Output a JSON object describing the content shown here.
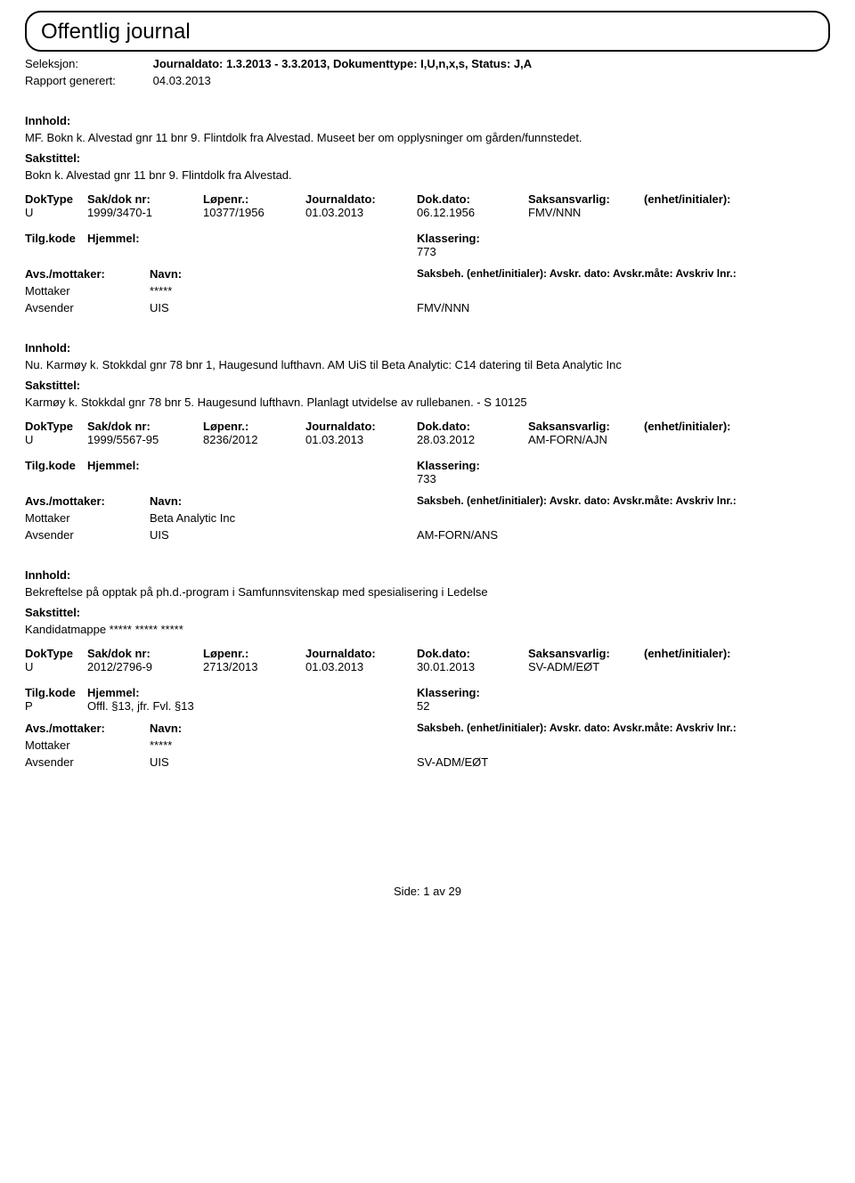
{
  "title": "Offentlig journal",
  "meta": {
    "seleksjon_label": "Seleksjon:",
    "seleksjon_value": "Journaldato: 1.3.2013 - 3.3.2013, Dokumenttype: I,U,n,x,s, Status: J,A",
    "rapport_label": "Rapport generert:",
    "rapport_value": "04.03.2013"
  },
  "labels": {
    "innhold": "Innhold:",
    "sakstittel": "Sakstittel:",
    "doktype": "DokType",
    "sakdok": "Sak/dok nr:",
    "lopenr": "Løpenr.:",
    "journaldato": "Journaldato:",
    "dokdato": "Dok.dato:",
    "saksansvarlig": "Saksansvarlig:",
    "enhet": "(enhet/initialer):",
    "tilgkode": "Tilg.kode",
    "hjemmel": "Hjemmel:",
    "klassering": "Klassering:",
    "avsmottaker": "Avs./mottaker:",
    "navn": "Navn:",
    "saksbeh_line": "Saksbeh. (enhet/initialer): Avskr. dato: Avskr.måte: Avskriv lnr.:"
  },
  "entries": [
    {
      "innhold": "MF. Bokn k. Alvestad gnr 11 bnr 9. Flintdolk fra Alvestad. Museet ber om opplysninger om gården/funnstedet.",
      "sakstittel": "Bokn k. Alvestad gnr 11 bnr 9. Flintdolk fra Alvestad.",
      "doktype": "U",
      "sakdok": "1999/3470-1",
      "lopenr": "10377/1956",
      "journaldato": "01.03.2013",
      "dokdato": "06.12.1956",
      "saksansvarlig": "FMV/NNN",
      "enhet": "",
      "tilgkode": "",
      "hjemmel": "",
      "klassering": "773",
      "parties": [
        {
          "role": "Mottaker",
          "name": "*****",
          "dept": ""
        },
        {
          "role": "Avsender",
          "name": "UIS",
          "dept": "FMV/NNN"
        }
      ]
    },
    {
      "innhold": "Nu. Karmøy k. Stokkdal gnr 78 bnr 1, Haugesund lufthavn. AM UiS til Beta Analytic: C14 datering til Beta Analytic Inc",
      "sakstittel": "Karmøy k. Stokkdal gnr 78 bnr 5. Haugesund lufthavn. Planlagt utvidelse av rullebanen. - S 10125",
      "doktype": "U",
      "sakdok": "1999/5567-95",
      "lopenr": "8236/2012",
      "journaldato": "01.03.2013",
      "dokdato": "28.03.2012",
      "saksansvarlig": "AM-FORN/AJN",
      "enhet": "",
      "tilgkode": "",
      "hjemmel": "",
      "klassering": "733",
      "parties": [
        {
          "role": "Mottaker",
          "name": "Beta Analytic Inc",
          "dept": ""
        },
        {
          "role": "Avsender",
          "name": "UIS",
          "dept": "AM-FORN/ANS"
        }
      ]
    },
    {
      "innhold": "Bekreftelse på opptak på ph.d.-program i Samfunnsvitenskap med spesialisering i Ledelse",
      "sakstittel": "Kandidatmappe ***** ***** *****",
      "doktype": "U",
      "sakdok": "2012/2796-9",
      "lopenr": "2713/2013",
      "journaldato": "01.03.2013",
      "dokdato": "30.01.2013",
      "saksansvarlig": "SV-ADM/EØT",
      "enhet": "",
      "tilgkode": "P",
      "hjemmel": "Offl. §13, jfr. Fvl. §13",
      "klassering": "52",
      "parties": [
        {
          "role": "Mottaker",
          "name": "*****",
          "dept": ""
        },
        {
          "role": "Avsender",
          "name": "UIS",
          "dept": "SV-ADM/EØT"
        }
      ]
    }
  ],
  "footer": {
    "prefix": "Side:",
    "page": "1",
    "middle": "av",
    "total": "29"
  }
}
